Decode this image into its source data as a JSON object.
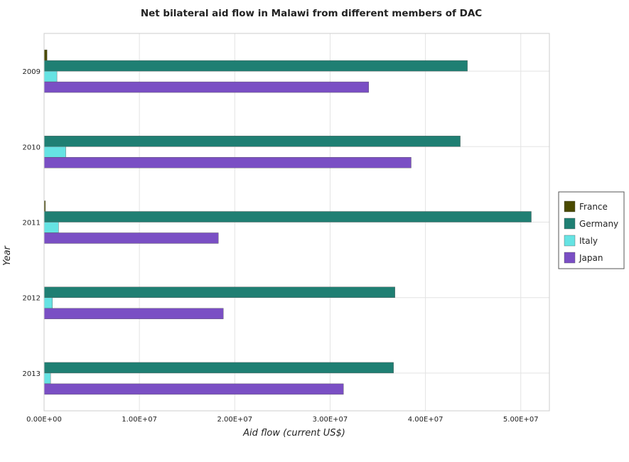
{
  "chart_data": {
    "type": "bar",
    "orientation": "horizontal",
    "title": "Net bilateral aid flow in Malawi from different members of DAC",
    "xlabel": "Aid flow (current US$)",
    "ylabel": "Year",
    "categories": [
      "2009",
      "2010",
      "2011",
      "2012",
      "2013"
    ],
    "series": [
      {
        "name": "France",
        "color": "#4a4a00",
        "values": [
          310000,
          0,
          140000,
          20000,
          0
        ]
      },
      {
        "name": "Germany",
        "color": "#1f7f73",
        "values": [
          44400000,
          43650000,
          51100000,
          36800000,
          36650000
        ]
      },
      {
        "name": "Italy",
        "color": "#66e3e3",
        "values": [
          1350000,
          2280000,
          1520000,
          880000,
          680000
        ]
      },
      {
        "name": "Japan",
        "color": "#7a4fc4",
        "values": [
          34050000,
          38500000,
          18280000,
          18800000,
          31400000
        ]
      }
    ],
    "xlim": [
      0,
      53000000
    ],
    "xticks": [
      0,
      10000000,
      20000000,
      30000000,
      40000000,
      50000000
    ],
    "xtick_labels": [
      "0.00E+00",
      "1.00E+07",
      "2.00E+07",
      "3.00E+07",
      "4.00E+07",
      "5.00E+07"
    ],
    "grid": true,
    "legend_position": "right"
  }
}
